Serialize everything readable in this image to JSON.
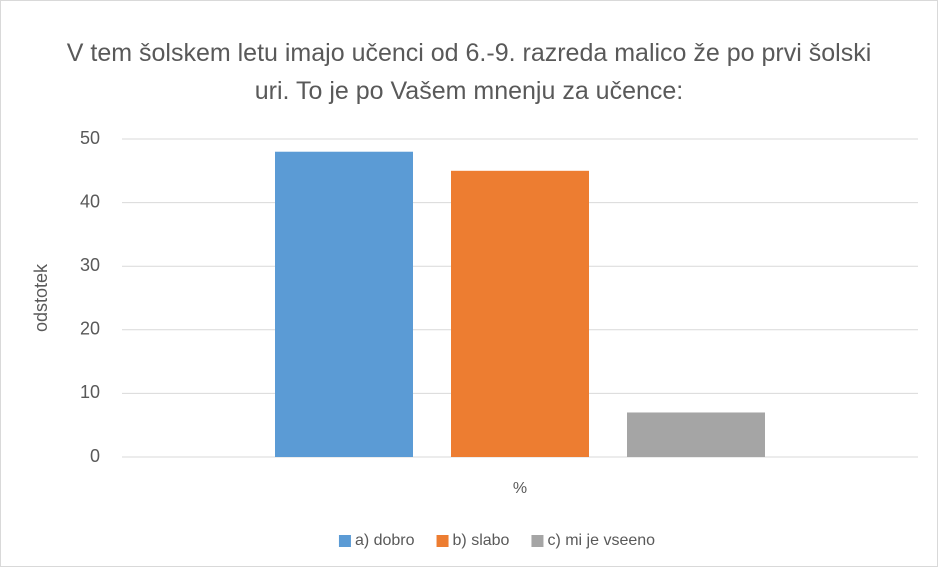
{
  "chart_data": {
    "type": "bar",
    "title": "V tem šolskem letu imajo učenci od 6.-9. razreda malico že po prvi šolski uri. To je po Vašem mnenju za učence:",
    "y_label": "odstotek",
    "categories": [
      "%"
    ],
    "series": [
      {
        "name": "a) dobro",
        "color": "#5b9bd5",
        "values": [
          48
        ]
      },
      {
        "name": "b) slabo",
        "color": "#ed7d31",
        "values": [
          45
        ]
      },
      {
        "name": "c) mi je vseeno",
        "color": "#a5a5a5",
        "values": [
          7
        ]
      }
    ],
    "ylim": [
      0,
      50
    ],
    "yticks": [
      0,
      10,
      20,
      30,
      40,
      50
    ],
    "grid": true,
    "legend": "bottom"
  }
}
